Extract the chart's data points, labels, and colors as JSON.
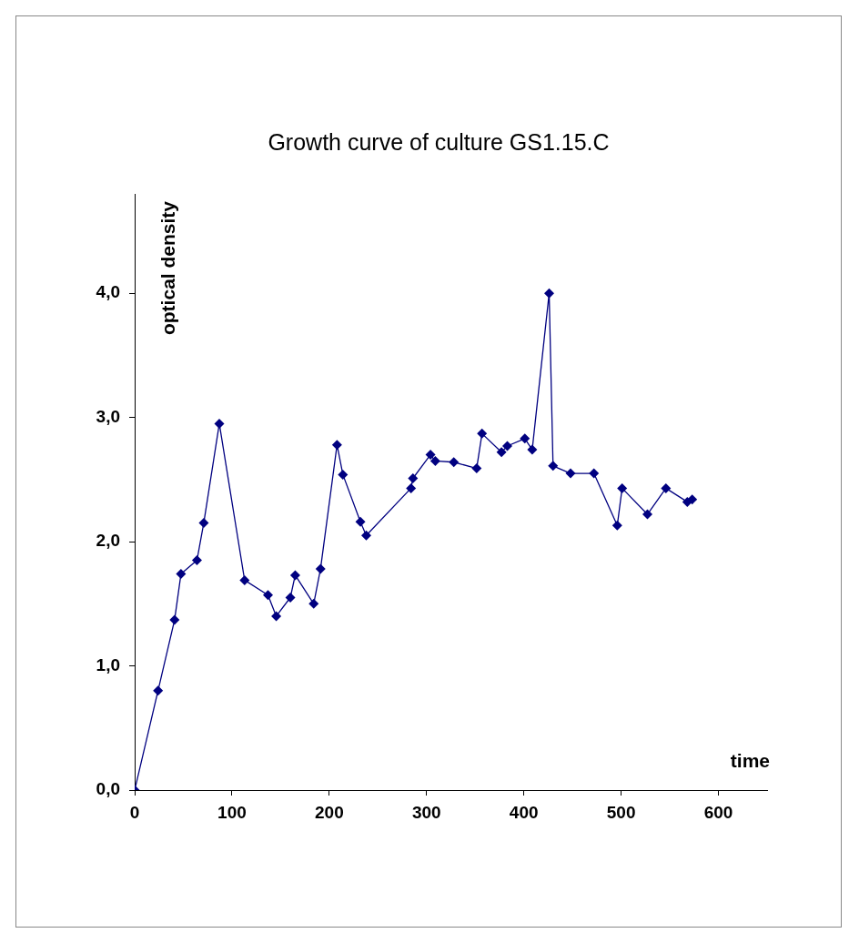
{
  "chart_data": {
    "type": "line",
    "title": "Growth curve of culture GS1.15.C",
    "xlabel": "time",
    "ylabel": "optical density",
    "x": [
      0,
      24,
      41,
      47.6,
      64,
      71,
      87,
      113,
      137,
      145.5,
      160,
      165,
      184,
      191,
      208,
      214,
      232,
      238,
      284,
      286,
      304,
      309,
      328,
      351.5,
      357,
      377,
      383,
      401,
      408.6,
      426,
      430,
      448,
      472,
      496,
      501,
      527,
      546,
      568,
      573
    ],
    "series": [
      {
        "color": "#000080",
        "values": [
          0,
          0.8,
          1.37,
          1.74,
          1.85,
          2.15,
          2.95,
          1.69,
          1.57,
          1.4,
          1.55,
          1.73,
          1.5,
          1.78,
          2.78,
          2.54,
          2.16,
          2.05,
          2.43,
          2.51,
          2.7,
          2.65,
          2.64,
          2.59,
          2.87,
          2.72,
          2.77,
          2.83,
          2.74,
          4.0,
          2.61,
          2.55,
          2.55,
          2.13,
          2.43,
          2.22,
          2.43,
          2.32,
          2.34
        ]
      }
    ],
    "xlim": [
      0,
      650
    ],
    "xticks": [
      0,
      100,
      200,
      300,
      400,
      500,
      600
    ],
    "ylim": [
      0,
      4.8
    ],
    "yticks": [
      {
        "value": 0,
        "label": "0,0"
      },
      {
        "value": 1,
        "label": "1,0"
      },
      {
        "value": 2,
        "label": "2,0"
      },
      {
        "value": 3,
        "label": "3,0"
      },
      {
        "value": 4,
        "label": "4,0"
      }
    ],
    "grid": false,
    "legend": false,
    "marker": "diamond",
    "line_style": "solid"
  }
}
